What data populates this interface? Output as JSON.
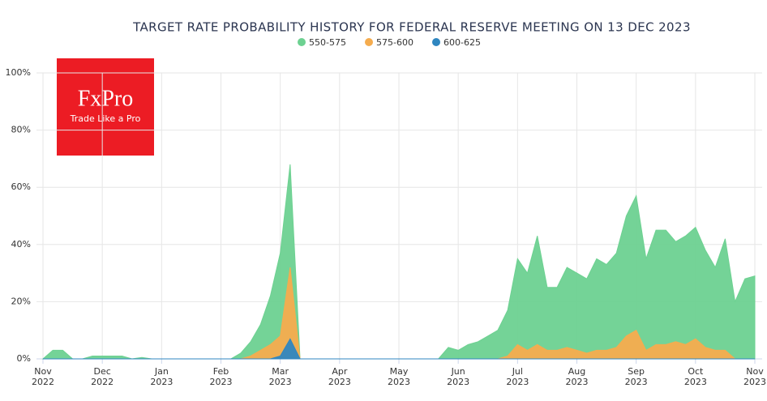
{
  "chart_data": {
    "type": "area",
    "title": "TARGET RATE PROBABILITY HISTORY FOR FEDERAL RESERVE MEETING ON 13 DEC 2023",
    "logo": {
      "name": "FxPro",
      "tagline": "Trade Like a Pro"
    },
    "categories": [
      "Nov 2022",
      null,
      null,
      null,
      null,
      null,
      "Dec 2022",
      null,
      null,
      null,
      null,
      null,
      "Jan 2023",
      null,
      null,
      null,
      null,
      null,
      "Feb 2023",
      null,
      null,
      null,
      null,
      null,
      "Mar 2023",
      null,
      null,
      null,
      null,
      null,
      "Apr 2023",
      null,
      null,
      null,
      null,
      null,
      "May 2023",
      null,
      null,
      null,
      null,
      null,
      "Jun 2023",
      null,
      null,
      null,
      null,
      null,
      "Jul 2023",
      null,
      null,
      null,
      null,
      null,
      "Aug 2023",
      null,
      null,
      null,
      null,
      null,
      "Sep 2023",
      null,
      null,
      null,
      null,
      null,
      "Oct 2023",
      null,
      null,
      null,
      null,
      null,
      "Nov 2023"
    ],
    "series": [
      {
        "name": "550-575",
        "color": "#6dd191",
        "values": [
          0,
          3,
          3,
          0,
          0,
          1,
          1,
          1,
          1,
          0,
          0.5,
          0,
          0,
          0,
          0,
          0,
          0,
          0,
          0,
          0,
          2,
          6,
          12,
          22,
          37,
          68,
          0,
          0,
          0,
          0,
          0,
          0,
          0,
          0,
          0,
          0,
          0,
          0,
          0,
          0,
          0,
          4,
          3,
          5,
          6,
          8,
          10,
          17,
          35,
          30,
          43,
          25,
          25,
          32,
          30,
          28,
          35,
          33,
          37,
          50,
          57,
          35,
          45,
          45,
          41,
          43,
          46,
          38,
          32,
          42,
          20,
          28,
          29
        ]
      },
      {
        "name": "575-600",
        "color": "#f5ac4e",
        "values": [
          0,
          0,
          0,
          0,
          0,
          0,
          0,
          0,
          0,
          0,
          0,
          0,
          0,
          0,
          0,
          0,
          0,
          0,
          0,
          0,
          0,
          1,
          3,
          5,
          8,
          32,
          0,
          0,
          0,
          0,
          0,
          0,
          0,
          0,
          0,
          0,
          0,
          0,
          0,
          0,
          0,
          0,
          0,
          0,
          0,
          0,
          0,
          1,
          5,
          3,
          5,
          3,
          3,
          4,
          3,
          2,
          3,
          3,
          4,
          8,
          10,
          3,
          5,
          5,
          6,
          5,
          7,
          4,
          3,
          3,
          0,
          0,
          0
        ]
      },
      {
        "name": "600-625",
        "color": "#2f86c0",
        "values": [
          0,
          0,
          0,
          0,
          0,
          0,
          0,
          0,
          0,
          0,
          0,
          0,
          0,
          0,
          0,
          0,
          0,
          0,
          0,
          0,
          0,
          0,
          0,
          0,
          1,
          7,
          0,
          0,
          0,
          0,
          0,
          0,
          0,
          0,
          0,
          0,
          0,
          0,
          0,
          0,
          0,
          0,
          0,
          0,
          0,
          0,
          0,
          0,
          0,
          0,
          0,
          0,
          0,
          0,
          0,
          0,
          0,
          0,
          0,
          0,
          0,
          0,
          0,
          0,
          0,
          0,
          0,
          0,
          0,
          0,
          0,
          0,
          0
        ]
      }
    ],
    "ylim": [
      0,
      100
    ],
    "yticks": [
      {
        "value": 0,
        "label": "0%"
      },
      {
        "value": 20,
        "label": "20%"
      },
      {
        "value": 40,
        "label": "40%"
      },
      {
        "value": 60,
        "label": "60%"
      },
      {
        "value": 80,
        "label": "80%"
      },
      {
        "value": 100,
        "label": "100%"
      }
    ],
    "grid": true
  }
}
